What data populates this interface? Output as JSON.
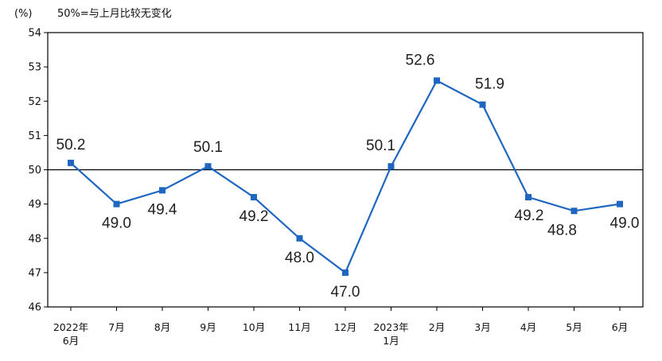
{
  "chart_data": {
    "type": "line",
    "unit_label": "(%)",
    "note": "50%=与上月比较无变化",
    "categories": [
      [
        "2022年",
        "6月"
      ],
      [
        "7月"
      ],
      [
        "8月"
      ],
      [
        "9月"
      ],
      [
        "10月"
      ],
      [
        "11月"
      ],
      [
        "12月"
      ],
      [
        "2023年",
        "1月"
      ],
      [
        "2月"
      ],
      [
        "3月"
      ],
      [
        "4月"
      ],
      [
        "5月"
      ],
      [
        "6月"
      ]
    ],
    "series": [
      {
        "values": [
          50.2,
          49.0,
          49.4,
          50.1,
          49.2,
          48.0,
          47.0,
          50.1,
          52.6,
          51.9,
          49.2,
          48.8,
          49.0
        ],
        "labels": [
          "50.2",
          "49.0",
          "49.4",
          "50.1",
          "49.2",
          "48.0",
          "47.0",
          "50.1",
          "52.6",
          "51.9",
          "49.2",
          "48.8",
          "49.0"
        ],
        "color": "#1f66c1"
      }
    ],
    "yticks": [
      "46",
      "47",
      "48",
      "49",
      "50",
      "51",
      "52",
      "53",
      "54"
    ],
    "ylim": [
      46,
      54
    ],
    "reference_line": 50,
    "grid": false,
    "colors": {
      "line": "#1f66c1",
      "reference": "#000000",
      "axis": "#000000"
    }
  }
}
